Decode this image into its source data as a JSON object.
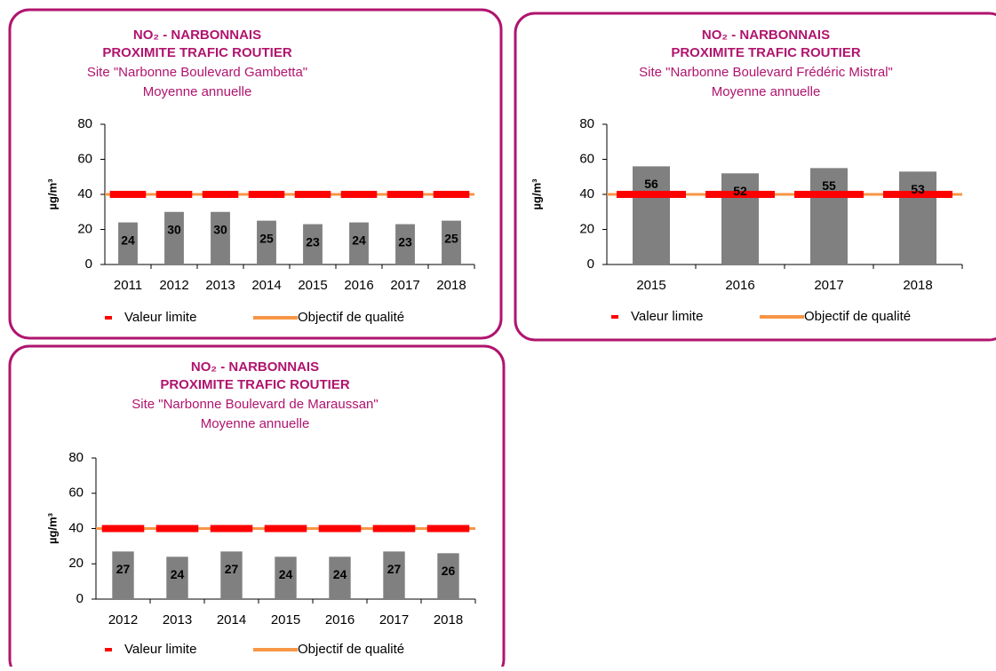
{
  "chart_data": [
    {
      "type": "bar",
      "title": [
        "NO₂ - NARBONNAIS",
        "PROXIMITE TRAFIC ROUTIER"
      ],
      "subtitle": [
        "Site \"Narbonne Boulevard Gambetta\"",
        "Moyenne annuelle"
      ],
      "y_label": "µg/m³",
      "categories": [
        "2011",
        "2012",
        "2013",
        "2014",
        "2015",
        "2016",
        "2017",
        "2018"
      ],
      "values": [
        24,
        30,
        30,
        25,
        23,
        24,
        23,
        25
      ],
      "color": "#808080",
      "lines": [
        {
          "name": "Valeur limite",
          "color": "#ff0000",
          "value": 40,
          "style": "dashed"
        },
        {
          "name": "Objectif de qualité",
          "color": "#f79646",
          "value": 40,
          "style": "solid"
        }
      ],
      "ylim": [
        0,
        80
      ],
      "yticks": [
        0,
        20,
        40,
        60,
        80
      ]
    },
    {
      "type": "bar",
      "title": [
        "NO₂ - NARBONNAIS",
        "PROXIMITE TRAFIC ROUTIER"
      ],
      "subtitle": [
        "Site \"Narbonne Boulevard Frédéric Mistral\"",
        "Moyenne annuelle"
      ],
      "y_label": "µg/m³",
      "categories": [
        "2015",
        "2016",
        "2017",
        "2018"
      ],
      "values": [
        56,
        52,
        55,
        53
      ],
      "color": "#808080",
      "lines": [
        {
          "name": "Valeur limite",
          "color": "#ff0000",
          "value": 40,
          "style": "dashed"
        },
        {
          "name": "Objectif de qualité",
          "color": "#f79646",
          "value": 40,
          "style": "solid"
        }
      ],
      "ylim": [
        0,
        80
      ],
      "yticks": [
        0,
        20,
        40,
        60,
        80
      ]
    },
    {
      "type": "bar",
      "title": [
        "NO₂ - NARBONNAIS",
        "PROXIMITE TRAFIC ROUTIER"
      ],
      "subtitle": [
        "Site \"Narbonne Boulevard de Maraussan\"",
        "Moyenne annuelle"
      ],
      "y_label": "µg/m³",
      "categories": [
        "2012",
        "2013",
        "2014",
        "2015",
        "2016",
        "2017",
        "2018"
      ],
      "values": [
        27,
        24,
        27,
        24,
        24,
        27,
        26
      ],
      "color": "#808080",
      "lines": [
        {
          "name": "Valeur limite",
          "color": "#ff0000",
          "value": 40,
          "style": "dashed"
        },
        {
          "name": "Objectif de qualité",
          "color": "#f79646",
          "value": 40,
          "style": "solid"
        }
      ],
      "ylim": [
        0,
        80
      ],
      "yticks": [
        0,
        20,
        40,
        60,
        80
      ]
    }
  ]
}
